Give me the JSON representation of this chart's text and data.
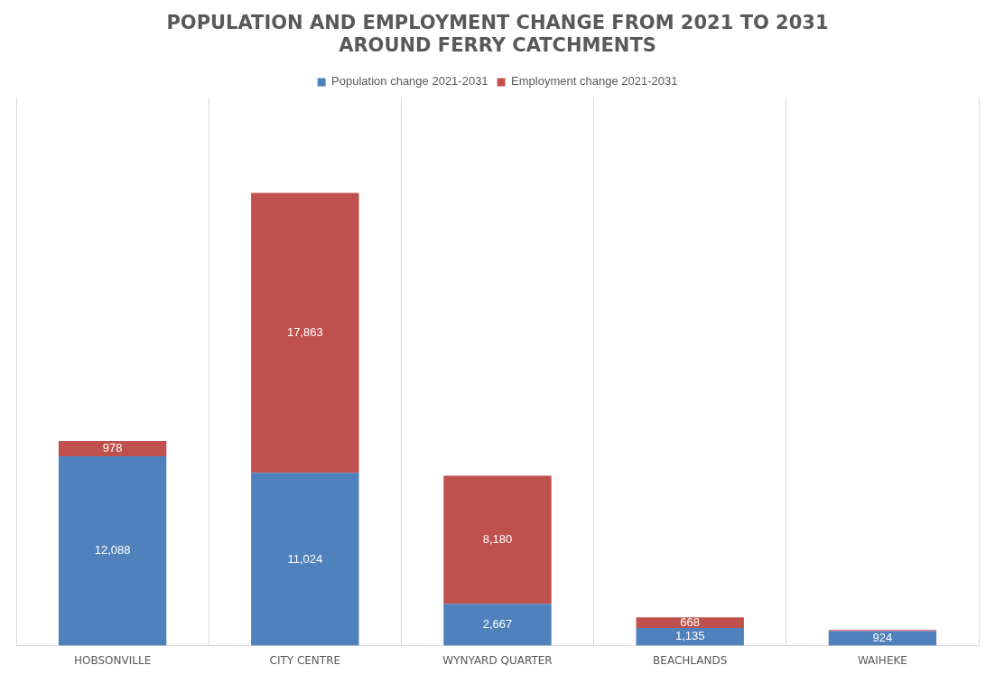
{
  "chart_data": {
    "type": "bar",
    "title": "POPULATION AND EMPLOYMENT CHANGE FROM 2021 TO 2031\nAROUND FERRY CATCHMENTS",
    "categories": [
      "HOBSONVILLE",
      "CITY CENTRE",
      "WYNYARD QUARTER",
      "BEACHLANDS",
      "WAIHEKE"
    ],
    "stacked": true,
    "legend": "top",
    "grid": "x",
    "series": [
      {
        "name": "Population change 2021-2031",
        "color": "#4f81bd",
        "values": [
          12088,
          11024,
          2667,
          1135,
          924
        ],
        "value_labels": [
          "12,088",
          "11,024",
          "2,667",
          "1,135",
          "924"
        ]
      },
      {
        "name": "Employment change 2021-2031",
        "color": "#c0504d",
        "values": [
          978,
          17863,
          8180,
          668,
          80
        ],
        "value_labels": [
          "978",
          "17,863",
          "8,180",
          "668",
          null
        ]
      }
    ]
  }
}
